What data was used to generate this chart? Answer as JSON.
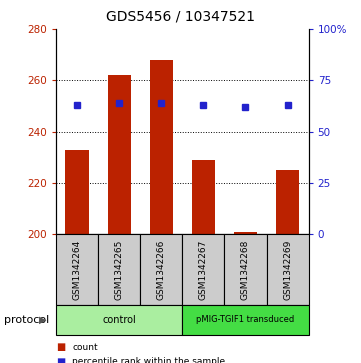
{
  "title": "GDS5456 / 10347521",
  "samples": [
    "GSM1342264",
    "GSM1342265",
    "GSM1342266",
    "GSM1342267",
    "GSM1342268",
    "GSM1342269"
  ],
  "counts": [
    233,
    262,
    268,
    229,
    201,
    225
  ],
  "percentile_ranks": [
    63,
    64,
    64,
    63,
    62,
    63
  ],
  "ylim_left": [
    200,
    280
  ],
  "ylim_right": [
    0,
    100
  ],
  "yticks_left": [
    200,
    220,
    240,
    260,
    280
  ],
  "yticks_right": [
    0,
    25,
    50,
    75,
    100
  ],
  "ytick_labels_right": [
    "0",
    "25",
    "50",
    "75",
    "100%"
  ],
  "bar_color": "#bb2200",
  "marker_color": "#2222cc",
  "protocol_groups": [
    {
      "label": "control",
      "start": 0,
      "end": 2,
      "color": "#aaeea0"
    },
    {
      "label": "pMIG-TGIF1 transduced",
      "start": 3,
      "end": 5,
      "color": "#44dd44"
    }
  ],
  "protocol_label": "protocol",
  "legend_items": [
    {
      "color": "#bb2200",
      "label": "count"
    },
    {
      "color": "#2222cc",
      "label": "percentile rank within the sample"
    }
  ],
  "bar_width": 0.55,
  "grid_color": "#000000",
  "background_label": "#cccccc"
}
